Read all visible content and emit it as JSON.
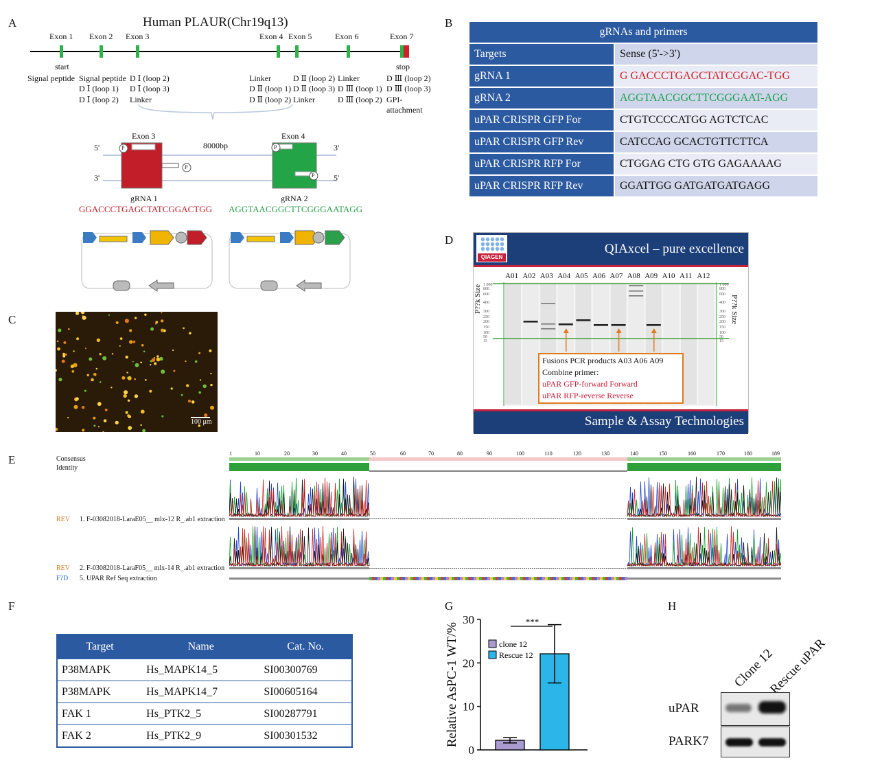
{
  "panels": {
    "a": "A",
    "b": "B",
    "c": "C",
    "d": "D",
    "e": "E",
    "f": "F",
    "g": "G",
    "h": "H"
  },
  "panel_a": {
    "title": "Human PLAUR(Chr19q13)",
    "exons": [
      "Exon 1",
      "Exon 2",
      "Exon 3",
      "Exon 4",
      "Exon 5",
      "Exon 6",
      "Exon 7"
    ],
    "start": "start",
    "stop": "stop",
    "ann": {
      "signal1": "Signal peptide",
      "signal2": "Signal peptide",
      "d1l1": "D Ⅰ (loop 1)",
      "d1l2": "D Ⅰ (loop 2)",
      "e3a": "D Ⅰ (loop 2)",
      "e3b": "D Ⅰ (loop 3)",
      "e3c": "Linker",
      "e4a": "Linker",
      "e4b": "D Ⅱ (loop 1)",
      "e4c": "D Ⅱ (loop 2)",
      "e5a": "D Ⅱ (loop 2)",
      "e5b": "D Ⅱ (loop 3)",
      "e5c": "Linker",
      "e6a": "Linker",
      "e6b": "D Ⅲ (loop 1)",
      "e6c": "D Ⅲ (loop 2)",
      "e7a": "D Ⅲ (loop 2)",
      "e7b": "D Ⅲ (loop 3)",
      "e7c": "GPI-",
      "e7d": "attachment"
    },
    "zoom": {
      "exon3": "Exon 3",
      "exon4": "Exon 4",
      "distance": "8000bp",
      "five_prime": "5'",
      "three_prime": "3'",
      "p": "P",
      "grna1_label": "gRNA 1",
      "grna1_seq": "GGACCCTGAGCTATCGGACTGG",
      "grna2_label": "gRNA 2",
      "grna2_seq": "AGGTAACGGCTTCGGGAATAGG"
    }
  },
  "panel_b": {
    "header": "gRNAs and primers",
    "col1": "Targets",
    "col2": "Sense (5'->3')",
    "rows": [
      {
        "target": "gRNA 1",
        "seq": "G GACCCTGAGCTATCGGAC-TGG",
        "color": "#d0202a"
      },
      {
        "target": "gRNA 2",
        "seq": "AGGTAACGGCTTCGGGAAT-AGG",
        "color": "#17a04a"
      },
      {
        "target": "uPAR CRISPR GFP For",
        "seq": "CTGTCCCCATGG AGTCTCAC",
        "color": "#111111"
      },
      {
        "target": "uPAR CRISPR GFP Rev",
        "seq": "CATCCAG GCACTGTTCTTCA",
        "color": "#111111"
      },
      {
        "target": "uPAR CRISPR RFP For",
        "seq": "CTGGAG CTG GTG GAGAAAAG",
        "color": "#111111"
      },
      {
        "target": "uPAR CRISPR RFP Rev",
        "seq": "GGATTGG GATGATGATGAGG",
        "color": "#111111"
      }
    ]
  },
  "panel_c": {
    "scale": "100 μm"
  },
  "panel_d": {
    "logo": "QIAGEN",
    "top_banner": "QIAxcel – pure excellence",
    "bottom_banner": "Sample & Assay Technologies",
    "lanes": [
      "A01",
      "A02",
      "A03",
      "A04",
      "A05",
      "A06",
      "A07",
      "A08",
      "A09",
      "A10",
      "A11",
      "A12"
    ],
    "axis_label_left": "P??k Size",
    "axis_label_right": "P??k Size",
    "ticks": [
      "1 000",
      "800",
      "600",
      "400",
      "300",
      "250",
      "200",
      "150",
      "100",
      "50",
      "15"
    ],
    "callout": [
      "Fusions PCR products A03 A06 A09",
      "Combine primer:",
      "uPAR GFP-forward Forward",
      "uPAR RFP-reverse Reverse"
    ]
  },
  "panel_e": {
    "consensus": "Consensus",
    "identity": "Identity",
    "ruler": [
      "1",
      "10",
      "20",
      "30",
      "40",
      "50",
      "60",
      "70",
      "80",
      "90",
      "100",
      "110",
      "120",
      "130",
      "140",
      "150",
      "160",
      "170",
      "180",
      "189"
    ],
    "rev": "REV",
    "fwd": "F?D",
    "track1": "1. F-03082018-LaraE05__ mlx-12 R_.ab1 extraction",
    "track2": "2. F-03082018-LaraF05__ mlx-14 R_.ab1 extraction",
    "track3": "5. UPAR Ref Seq extraction"
  },
  "panel_f": {
    "headers": [
      "Target",
      "Name",
      "Cat. No."
    ],
    "rows": [
      [
        "P38MAPK",
        "Hs_MAPK14_5",
        "SI00300769"
      ],
      [
        "P38MAPK",
        "Hs_MAPK14_7",
        "SI00605164"
      ],
      [
        "FAK 1",
        "Hs_PTK2_5",
        "SI00287791"
      ],
      [
        "FAK 2",
        "Hs_PTK2_9",
        "SI00301532"
      ]
    ]
  },
  "chart_data": {
    "type": "bar",
    "categories": [
      "clone 12",
      "Rescue 12"
    ],
    "values": [
      2.2,
      22.1
    ],
    "errors": [
      0.6,
      6.7
    ],
    "colors": [
      "#a99bd0",
      "#2bb5e8"
    ],
    "ylabel": "Relative AsPC-1 WT/%",
    "ylim": [
      0,
      30
    ],
    "yticks": [
      "0",
      "10",
      "20",
      "30"
    ],
    "significance": "***",
    "legend": [
      "clone 12",
      "Rescue 12"
    ],
    "legend_position": "top-left"
  },
  "panel_h": {
    "lane1": "Clone 12",
    "lane2": "Rescue uPAR",
    "band1": "uPAR",
    "band2": "PARK7"
  }
}
